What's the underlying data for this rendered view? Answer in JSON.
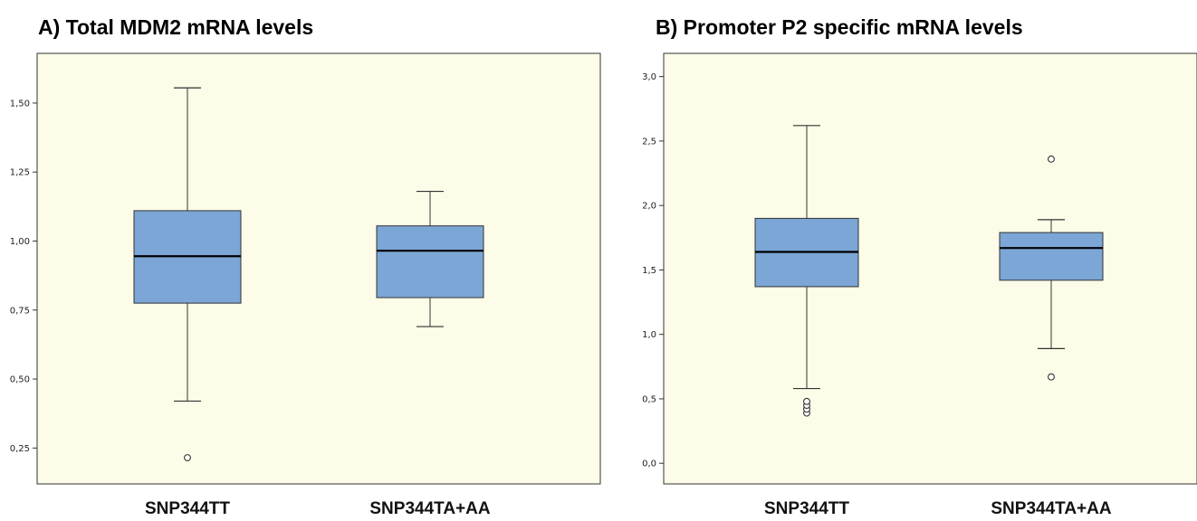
{
  "chart_data": [
    {
      "type": "box",
      "title": "A) Total MDM2 mRNA levels",
      "xlabel": "",
      "ylabel": "",
      "categories": [
        "SNP344TT",
        "SNP344TA+AA"
      ],
      "yticks": [
        "0,25",
        "0,50",
        "0,75",
        "1,00",
        "1,25",
        "1,50"
      ],
      "ytick_values": [
        0.25,
        0.5,
        0.75,
        1.0,
        1.25,
        1.5
      ],
      "ylim": [
        0.12,
        1.68
      ],
      "grid": false,
      "box_color": "#7ba6d6",
      "boxes": [
        {
          "category": "SNP344TT",
          "whisker_low": 0.42,
          "q1": 0.775,
          "median": 0.945,
          "q3": 1.11,
          "whisker_high": 1.555,
          "outliers": [
            0.215
          ]
        },
        {
          "category": "SNP344TA+AA",
          "whisker_low": 0.69,
          "q1": 0.795,
          "median": 0.965,
          "q3": 1.055,
          "whisker_high": 1.18,
          "outliers": []
        }
      ]
    },
    {
      "type": "box",
      "title": "B) Promoter P2 specific mRNA levels",
      "xlabel": "",
      "ylabel": "",
      "categories": [
        "SNP344TT",
        "SNP344TA+AA"
      ],
      "yticks": [
        "0,0",
        "0,5",
        "1,0",
        "1,5",
        "2,0",
        "2,5",
        "3,0"
      ],
      "ytick_values": [
        0,
        0.5,
        1.0,
        1.5,
        2.0,
        2.5,
        3.0
      ],
      "ylim": [
        -0.16,
        3.18
      ],
      "grid": false,
      "box_color": "#7ba6d6",
      "boxes": [
        {
          "category": "SNP344TT",
          "whisker_low": 0.58,
          "q1": 1.37,
          "median": 1.64,
          "q3": 1.9,
          "whisker_high": 2.62,
          "outliers": [
            0.39,
            0.42,
            0.45,
            0.48
          ]
        },
        {
          "category": "SNP344TA+AA",
          "whisker_low": 0.89,
          "q1": 1.42,
          "median": 1.67,
          "q3": 1.79,
          "whisker_high": 1.89,
          "outliers": [
            0.67,
            2.36
          ]
        }
      ]
    }
  ]
}
